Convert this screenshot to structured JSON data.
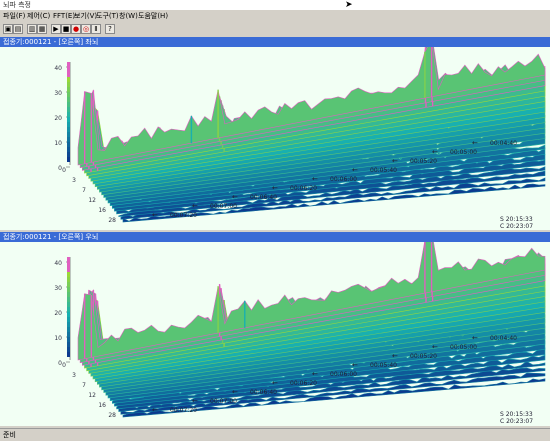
{
  "window": {
    "title": "뇌파 측정"
  },
  "menu": [
    "파일(F)",
    "제어(C)",
    "FFT(E)",
    "보기(V)",
    "도구(T)",
    "창(W)",
    "도움말(H)"
  ],
  "toolbar": {
    "playback": [
      "▶",
      "■",
      "●",
      "◎",
      "Ⅱ",
      "?"
    ]
  },
  "panels": [
    {
      "title": "접종기:000121 - [오른쪽] 좌뇌",
      "z_ticks": [
        "40",
        "30",
        "20",
        "10",
        "0"
      ],
      "freq_ticks": [
        "0",
        "3",
        "7",
        "12",
        "16",
        "28"
      ],
      "time_ticks": [
        "00:07:20",
        "00:07:00",
        "00:06:40",
        "00:06:20",
        "00:06:00",
        "00:05:40",
        "00:05:20",
        "00:05:00",
        "00:04:40"
      ],
      "start": "S 20:15:33",
      "current": "C 20:23:07"
    },
    {
      "title": "접종기:000121 - [오른쪽] 우뇌",
      "z_ticks": [
        "40",
        "30",
        "20",
        "10",
        "0"
      ],
      "freq_ticks": [
        "0",
        "3",
        "7",
        "12",
        "16",
        "28"
      ],
      "time_ticks": [
        "00:07:20",
        "00:07:00",
        "00:06:40",
        "00:06:20",
        "00:06:00",
        "00:05:40",
        "00:05:20",
        "00:05:00",
        "00:04:40"
      ],
      "start": "S 20:15:33",
      "current": "C 20:23:07"
    }
  ],
  "status": {
    "text": "준비"
  },
  "colors": {
    "panel_bg": "#f2fff4",
    "header": "#3a6bd6",
    "peak": "#e060c0",
    "low": "#0a2a8a",
    "mid": "#18b0b0",
    "high": "#9ad838"
  }
}
